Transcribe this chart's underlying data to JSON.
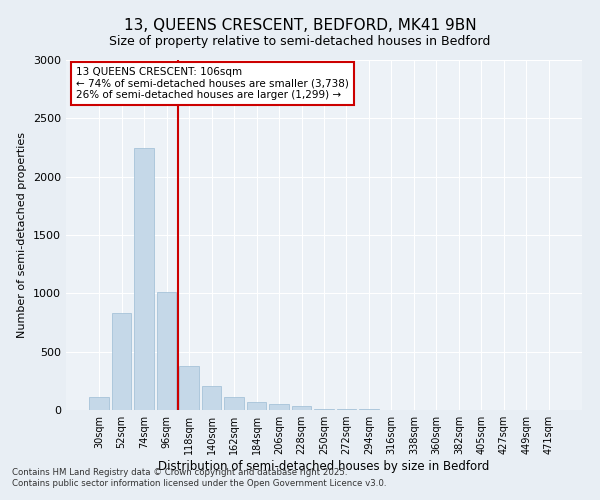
{
  "title_line1": "13, QUEENS CRESCENT, BEDFORD, MK41 9BN",
  "title_line2": "Size of property relative to semi-detached houses in Bedford",
  "xlabel": "Distribution of semi-detached houses by size in Bedford",
  "ylabel": "Number of semi-detached properties",
  "categories": [
    "30sqm",
    "52sqm",
    "74sqm",
    "96sqm",
    "118sqm",
    "140sqm",
    "162sqm",
    "184sqm",
    "206sqm",
    "228sqm",
    "250sqm",
    "272sqm",
    "294sqm",
    "316sqm",
    "338sqm",
    "360sqm",
    "382sqm",
    "405sqm",
    "427sqm",
    "449sqm",
    "471sqm"
  ],
  "values": [
    110,
    830,
    2250,
    1010,
    375,
    210,
    115,
    70,
    55,
    35,
    10,
    8,
    5,
    3,
    2,
    1,
    1,
    0,
    0,
    0,
    0
  ],
  "bar_color": "#c5d8e8",
  "bar_edge_color": "#9dbdd4",
  "vline_x_index": 3,
  "vline_color": "#cc0000",
  "annotation_title": "13 QUEENS CRESCENT: 106sqm",
  "annotation_line2": "← 74% of semi-detached houses are smaller (3,738)",
  "annotation_line3": "26% of semi-detached houses are larger (1,299) →",
  "annotation_box_edgecolor": "#cc0000",
  "ylim": [
    0,
    3000
  ],
  "yticks": [
    0,
    500,
    1000,
    1500,
    2000,
    2500,
    3000
  ],
  "footer_line1": "Contains HM Land Registry data © Crown copyright and database right 2025.",
  "footer_line2": "Contains public sector information licensed under the Open Government Licence v3.0.",
  "bg_color": "#e8eef4",
  "plot_bg_color": "#edf2f7"
}
